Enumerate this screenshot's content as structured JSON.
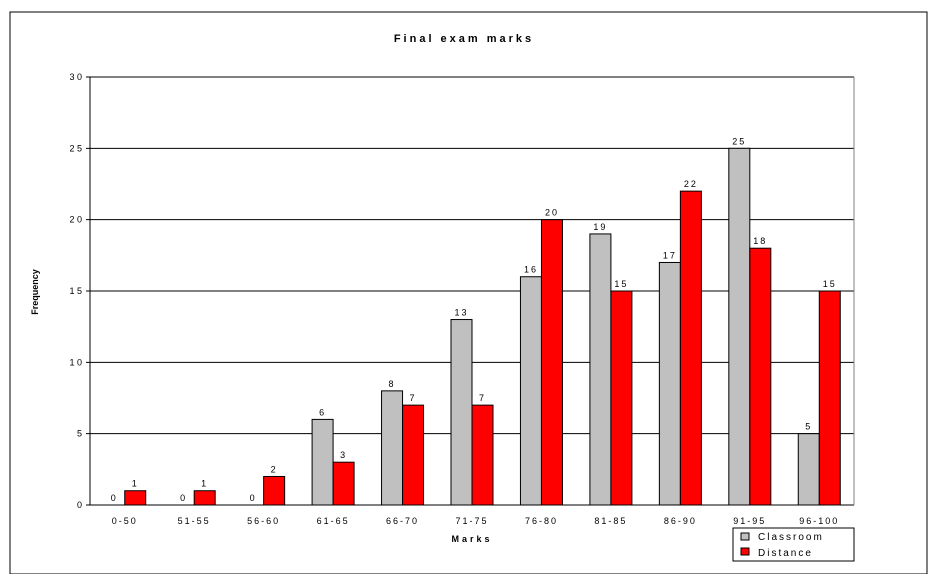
{
  "chart_data": {
    "type": "bar",
    "title": "Final exam marks",
    "xlabel": "Marks",
    "ylabel": "Frequency",
    "categories": [
      "0-50",
      "51-55",
      "56-60",
      "61-65",
      "66-70",
      "71-75",
      "76-80",
      "81-85",
      "86-90",
      "91-95",
      "96-100"
    ],
    "series": [
      {
        "name": "Classroom",
        "values": [
          0,
          0,
          0,
          6,
          8,
          13,
          16,
          19,
          17,
          25,
          5
        ],
        "color": "#c0c0c0"
      },
      {
        "name": "Distance",
        "values": [
          1,
          1,
          2,
          3,
          7,
          7,
          20,
          15,
          22,
          18,
          15
        ],
        "color": "#ff0000"
      }
    ],
    "ylim": [
      0,
      30
    ],
    "yticks": [
      0,
      5,
      10,
      15,
      20,
      25,
      30
    ],
    "ytick_labels": [
      "0",
      "5",
      "1 0",
      "1 5",
      "2 0",
      "2 5",
      "3 0"
    ],
    "grid": true,
    "legend_position": "bottom-right",
    "data_labels": true
  },
  "legend": {
    "classroom_label": "Classroom",
    "distance_label": "Distance"
  }
}
